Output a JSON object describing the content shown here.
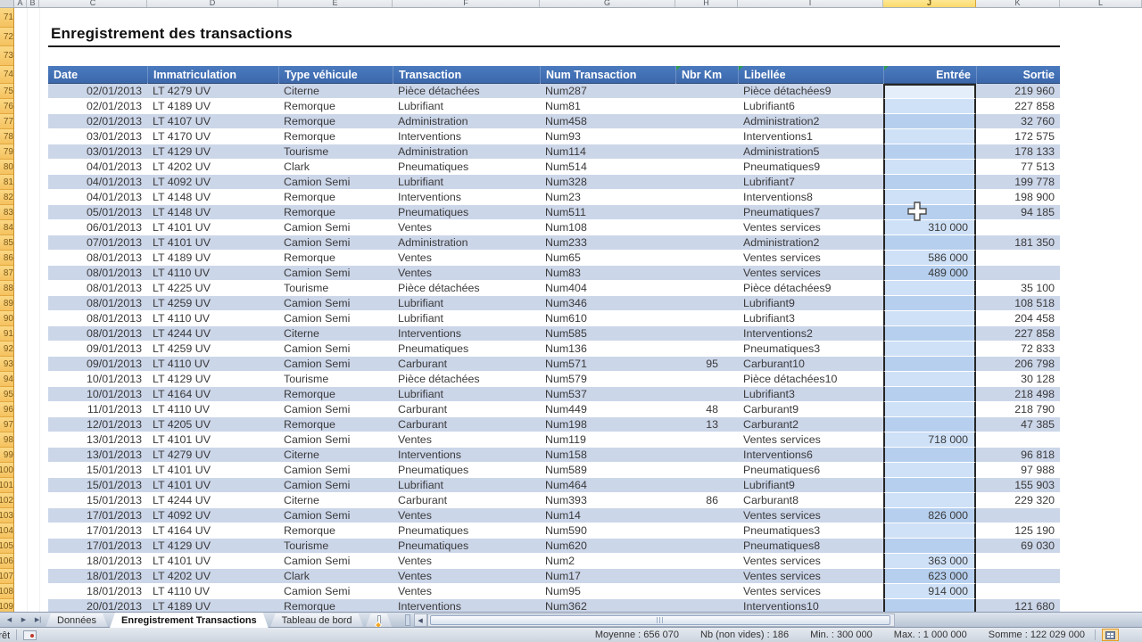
{
  "spreadsheet": {
    "column_letters": [
      "A",
      "B",
      "C",
      "D",
      "E",
      "F",
      "G",
      "H",
      "I",
      "J",
      "K",
      "L"
    ],
    "selected_column": "J",
    "row_header_start": 71,
    "title": "Enregistrement des transactions",
    "table": {
      "selected_column_index": 7,
      "columns": [
        {
          "label": "Date",
          "align": "left",
          "flag": false
        },
        {
          "label": "Immatriculation",
          "align": "left",
          "flag": false
        },
        {
          "label": "Type véhicule",
          "align": "left",
          "flag": false
        },
        {
          "label": "Transaction",
          "align": "left",
          "flag": false
        },
        {
          "label": "Num Transaction",
          "align": "left",
          "flag": false
        },
        {
          "label": "Nbr Km",
          "align": "left",
          "flag": true
        },
        {
          "label": "Libellée",
          "align": "left",
          "flag": true
        },
        {
          "label": "Entrée",
          "align": "right",
          "flag": true
        },
        {
          "label": "Sortie",
          "align": "right",
          "flag": false
        }
      ],
      "rows": [
        [
          "02/01/2013",
          "LT 4279 UV",
          "Citerne",
          "Pièce détachées",
          "Num287",
          "",
          "Pièce détachées9",
          "",
          "219 960"
        ],
        [
          "02/01/2013",
          "LT 4189 UV",
          "Remorque",
          "Lubrifiant",
          "Num81",
          "",
          "Lubrifiant6",
          "",
          "227 858"
        ],
        [
          "02/01/2013",
          "LT 4107 UV",
          "Remorque",
          "Administration",
          "Num458",
          "",
          "Administration2",
          "",
          "32 760"
        ],
        [
          "03/01/2013",
          "LT 4170 UV",
          "Remorque",
          "Interventions",
          "Num93",
          "",
          "Interventions1",
          "",
          "172 575"
        ],
        [
          "03/01/2013",
          "LT 4129 UV",
          "Tourisme",
          "Administration",
          "Num114",
          "",
          "Administration5",
          "",
          "178 133"
        ],
        [
          "04/01/2013",
          "LT 4202 UV",
          "Clark",
          "Pneumatiques",
          "Num514",
          "",
          "Pneumatiques9",
          "",
          "77 513"
        ],
        [
          "04/01/2013",
          "LT 4092 UV",
          "Camion Semi",
          "Lubrifiant",
          "Num328",
          "",
          "Lubrifiant7",
          "",
          "199 778"
        ],
        [
          "04/01/2013",
          "LT 4148 UV",
          "Remorque",
          "Interventions",
          "Num23",
          "",
          "Interventions8",
          "",
          "198 900"
        ],
        [
          "05/01/2013",
          "LT 4148 UV",
          "Remorque",
          "Pneumatiques",
          "Num511",
          "",
          "Pneumatiques7",
          "",
          "94 185"
        ],
        [
          "06/01/2013",
          "LT 4101 UV",
          "Camion Semi",
          "Ventes",
          "Num108",
          "",
          "Ventes services",
          "310 000",
          ""
        ],
        [
          "07/01/2013",
          "LT 4101 UV",
          "Camion Semi",
          "Administration",
          "Num233",
          "",
          "Administration2",
          "",
          "181 350"
        ],
        [
          "08/01/2013",
          "LT 4189 UV",
          "Remorque",
          "Ventes",
          "Num65",
          "",
          "Ventes services",
          "586 000",
          ""
        ],
        [
          "08/01/2013",
          "LT 4110 UV",
          "Camion Semi",
          "Ventes",
          "Num83",
          "",
          "Ventes services",
          "489 000",
          ""
        ],
        [
          "08/01/2013",
          "LT 4225 UV",
          "Tourisme",
          "Pièce détachées",
          "Num404",
          "",
          "Pièce détachées9",
          "",
          "35 100"
        ],
        [
          "08/01/2013",
          "LT 4259 UV",
          "Camion Semi",
          "Lubrifiant",
          "Num346",
          "",
          "Lubrifiant9",
          "",
          "108 518"
        ],
        [
          "08/01/2013",
          "LT 4110 UV",
          "Camion Semi",
          "Lubrifiant",
          "Num610",
          "",
          "Lubrifiant3",
          "",
          "204 458"
        ],
        [
          "08/01/2013",
          "LT 4244 UV",
          "Citerne",
          "Interventions",
          "Num585",
          "",
          "Interventions2",
          "",
          "227 858"
        ],
        [
          "09/01/2013",
          "LT 4259 UV",
          "Camion Semi",
          "Pneumatiques",
          "Num136",
          "",
          "Pneumatiques3",
          "",
          "72 833"
        ],
        [
          "09/01/2013",
          "LT 4110 UV",
          "Camion Semi",
          "Carburant",
          "Num571",
          "95",
          "Carburant10",
          "",
          "206 798"
        ],
        [
          "10/01/2013",
          "LT 4129 UV",
          "Tourisme",
          "Pièce détachées",
          "Num579",
          "",
          "Pièce détachées10",
          "",
          "30 128"
        ],
        [
          "10/01/2013",
          "LT 4164 UV",
          "Remorque",
          "Lubrifiant",
          "Num537",
          "",
          "Lubrifiant3",
          "",
          "218 498"
        ],
        [
          "11/01/2013",
          "LT 4110 UV",
          "Camion Semi",
          "Carburant",
          "Num449",
          "48",
          "Carburant9",
          "",
          "218 790"
        ],
        [
          "12/01/2013",
          "LT 4205 UV",
          "Remorque",
          "Carburant",
          "Num198",
          "13",
          "Carburant2",
          "",
          "47 385"
        ],
        [
          "13/01/2013",
          "LT 4101 UV",
          "Camion Semi",
          "Ventes",
          "Num119",
          "",
          "Ventes services",
          "718 000",
          ""
        ],
        [
          "13/01/2013",
          "LT 4279 UV",
          "Citerne",
          "Interventions",
          "Num158",
          "",
          "Interventions6",
          "",
          "96 818"
        ],
        [
          "15/01/2013",
          "LT 4101 UV",
          "Camion Semi",
          "Pneumatiques",
          "Num589",
          "",
          "Pneumatiques6",
          "",
          "97 988"
        ],
        [
          "15/01/2013",
          "LT 4101 UV",
          "Camion Semi",
          "Lubrifiant",
          "Num464",
          "",
          "Lubrifiant9",
          "",
          "155 903"
        ],
        [
          "15/01/2013",
          "LT 4244 UV",
          "Citerne",
          "Carburant",
          "Num393",
          "86",
          "Carburant8",
          "",
          "229 320"
        ],
        [
          "17/01/2013",
          "LT 4092 UV",
          "Camion Semi",
          "Ventes",
          "Num14",
          "",
          "Ventes services",
          "826 000",
          ""
        ],
        [
          "17/01/2013",
          "LT 4164 UV",
          "Remorque",
          "Pneumatiques",
          "Num590",
          "",
          "Pneumatiques3",
          "",
          "125 190"
        ],
        [
          "17/01/2013",
          "LT 4129 UV",
          "Tourisme",
          "Pneumatiques",
          "Num620",
          "",
          "Pneumatiques8",
          "",
          "69 030"
        ],
        [
          "18/01/2013",
          "LT 4101 UV",
          "Camion Semi",
          "Ventes",
          "Num2",
          "",
          "Ventes services",
          "363 000",
          ""
        ],
        [
          "18/01/2013",
          "LT 4202 UV",
          "Clark",
          "Ventes",
          "Num17",
          "",
          "Ventes services",
          "623 000",
          ""
        ],
        [
          "18/01/2013",
          "LT 4110 UV",
          "Camion Semi",
          "Ventes",
          "Num95",
          "",
          "Ventes services",
          "914 000",
          ""
        ],
        [
          "20/01/2013",
          "LT 4189 UV",
          "Remorque",
          "Interventions",
          "Num362",
          "",
          "Interventions10",
          "",
          "121 680"
        ]
      ]
    }
  },
  "sheet_tabs": {
    "tabs": [
      {
        "label": "Données",
        "active": false
      },
      {
        "label": "Enregistrement Transactions",
        "active": true
      },
      {
        "label": "Tableau de bord",
        "active": false
      }
    ]
  },
  "status_bar": {
    "mode": "Prêt",
    "stats": [
      {
        "label": "Moyenne",
        "value": "656 070"
      },
      {
        "label": "Nb (non vides)",
        "value": "186"
      },
      {
        "label": "Min.",
        "value": "300 000"
      },
      {
        "label": "Max.",
        "value": "1 000 000"
      },
      {
        "label": "Somme",
        "value": "122 029 000"
      }
    ]
  },
  "colors": {
    "header_blue": "#3f6cb0",
    "band_blue": "#ccd6e9",
    "selection_band": "#b6cfee",
    "selection_white": "#cfe1f7",
    "active_cell": "#e4eefb",
    "selected_header_yellow": "#fce488",
    "row_header_amber": "#f8ce6f"
  }
}
